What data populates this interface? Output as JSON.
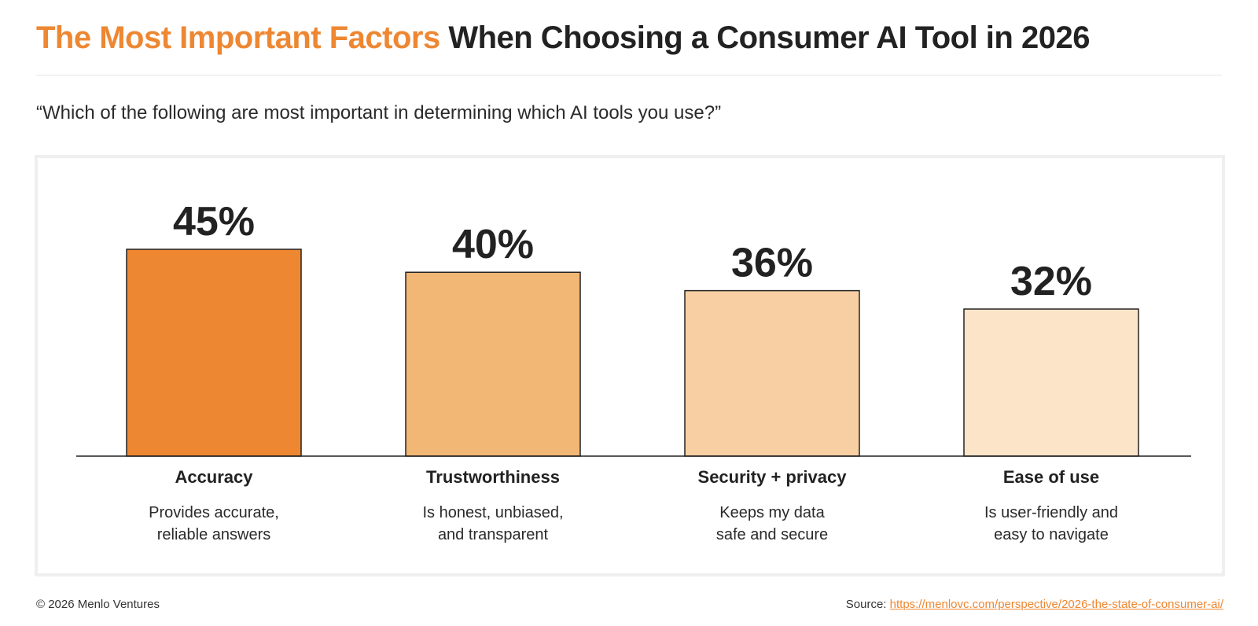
{
  "header": {
    "title_highlight": "The Most Important Factors",
    "title_rest": "When Choosing a Consumer AI Tool in 2026",
    "question": "“Which of the following are most important in determining which AI tools you use?”"
  },
  "chart_data": {
    "type": "bar",
    "title": "The Most Important Factors When Choosing a Consumer AI Tool in 2026",
    "subtitle": "“Which of the following are most important in determining which AI tools you use?”",
    "categories": [
      "Accuracy",
      "Trustworthiness",
      "Security + privacy",
      "Ease of use"
    ],
    "descriptions": [
      [
        "Provides accurate,",
        "reliable answers"
      ],
      [
        "Is honest, unbiased,",
        "and transparent"
      ],
      [
        "Keeps my data",
        "safe and secure"
      ],
      [
        "Is user-friendly and",
        "easy to navigate"
      ]
    ],
    "values": [
      45,
      40,
      36,
      32
    ],
    "value_labels": [
      "45%",
      "40%",
      "36%",
      "32%"
    ],
    "unit": "%",
    "colors": [
      "#ee8732",
      "#f2b675",
      "#f7cfa3",
      "#fce4c9"
    ],
    "grid": false,
    "legend": "none"
  },
  "footer": {
    "copyright": "© 2026 Menlo Ventures",
    "source_prefix": "Source:",
    "source_link": "https://menlovc.com/perspective/2026-the-state-of-consumer-ai/"
  }
}
